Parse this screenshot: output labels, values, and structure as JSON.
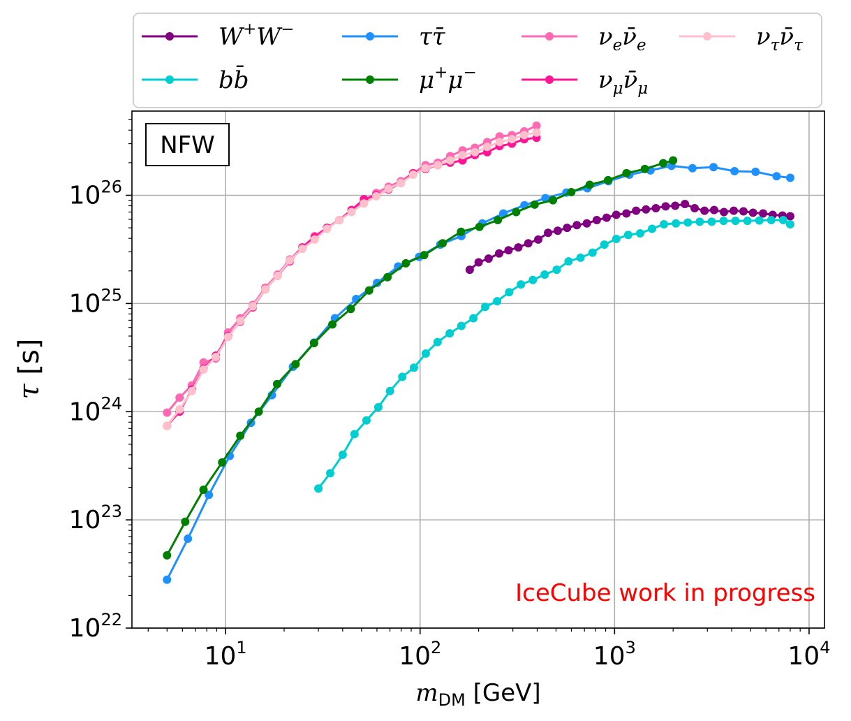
{
  "chart_data": {
    "type": "line",
    "title": "",
    "xlabel": "m_DM [GeV]",
    "ylabel": "τ [s]",
    "xscale": "log",
    "yscale": "log",
    "xlim": [
      3.3,
      12000
    ],
    "ylim": [
      1e+22,
      6e+26
    ],
    "grid": true,
    "legend_position": "top-outside",
    "x_ticks": [
      {
        "value": 10,
        "base": "10",
        "exp": "1"
      },
      {
        "value": 100,
        "base": "10",
        "exp": "2"
      },
      {
        "value": 1000,
        "base": "10",
        "exp": "3"
      },
      {
        "value": 10000,
        "base": "10",
        "exp": "4"
      }
    ],
    "y_ticks": [
      {
        "value": 1e+22,
        "base": "10",
        "exp": "22"
      },
      {
        "value": 1e+23,
        "base": "10",
        "exp": "23"
      },
      {
        "value": 1e+24,
        "base": "10",
        "exp": "24"
      },
      {
        "value": 1e+25,
        "base": "10",
        "exp": "25"
      },
      {
        "value": 1e+26,
        "base": "10",
        "exp": "26"
      }
    ],
    "annotations": [
      {
        "text": "NFW",
        "boxed": true,
        "position": "top-left"
      },
      {
        "text": "IceCube work in progress",
        "color": "#ff0000",
        "position": "bottom-right"
      }
    ],
    "series": [
      {
        "name": "W⁺W⁻",
        "legend": {
          "base": "W",
          "sup1": "+",
          "base2": "W",
          "sup2": "−"
        },
        "color": "#800080",
        "x": [
          180,
          200,
          225,
          255,
          285,
          320,
          360,
          405,
          455,
          510,
          570,
          640,
          720,
          810,
          910,
          1020,
          1150,
          1290,
          1450,
          1630,
          1830,
          2050,
          2300,
          2580,
          2900,
          3250,
          3650,
          4100,
          4600,
          5150,
          5800,
          6500,
          7300,
          8000
        ],
        "y": [
          2.05e+25,
          2.4e+25,
          2.6e+25,
          2.9e+25,
          3.1e+25,
          3.3e+25,
          3.6e+25,
          3.9e+25,
          4.5e+25,
          4.7e+25,
          5e+25,
          5.3e+25,
          5.5e+25,
          5.9e+25,
          6.2e+25,
          6.6e+25,
          6.8e+25,
          7.2e+25,
          7.4e+25,
          7.6e+25,
          7.9e+25,
          8e+25,
          8.3e+25,
          7.6e+25,
          7.2e+25,
          7.3e+25,
          7e+25,
          7.2e+25,
          7.1e+25,
          6.9e+25,
          6.8e+25,
          6.6e+25,
          6.5e+25,
          6.4e+25
        ]
      },
      {
        "name": "bb̄",
        "legend": {
          "base": "bb̄"
        },
        "color": "#00ced1",
        "x": [
          30,
          34.5,
          40,
          46,
          53,
          61,
          70,
          81,
          93,
          107,
          123,
          142,
          163,
          188,
          216,
          249,
          287,
          330,
          380,
          437,
          504,
          580,
          668,
          770,
          886,
          1020,
          1175,
          1353,
          1558,
          1794,
          2066,
          2380,
          2740,
          3156,
          3634,
          4185,
          4819,
          5550,
          6390,
          7360,
          8000
        ],
        "y": [
          1.95e+23,
          2.7e+23,
          4e+23,
          6.2e+23,
          8.3e+23,
          1.1e+24,
          1.55e+24,
          2.1e+24,
          2.55e+24,
          3.45e+24,
          4.4e+24,
          5.3e+24,
          6.2e+24,
          7.3e+24,
          9.3e+24,
          1.05e+25,
          1.27e+25,
          1.5e+25,
          1.65e+25,
          1.85e+25,
          2.05e+25,
          2.45e+25,
          2.65e+25,
          2.95e+25,
          3.5e+25,
          3.95e+25,
          4.3e+25,
          4.45e+25,
          4.9e+25,
          5.4e+25,
          5.5e+25,
          5.6e+25,
          5.7e+25,
          5.7e+25,
          5.8e+25,
          5.8e+25,
          5.8e+25,
          5.85e+25,
          5.9e+25,
          5.9e+25,
          5.4e+25
        ]
      },
      {
        "name": "ττ̄",
        "legend": {
          "base": "ττ̄"
        },
        "color": "#1e90ff",
        "x": [
          5,
          6.4,
          8.2,
          10.5,
          13.5,
          17.3,
          22.2,
          28.5,
          36.5,
          46.9,
          60.1,
          77.1,
          98.9,
          127,
          163,
          209,
          268,
          344,
          441,
          565,
          725,
          930,
          1192,
          1529,
          1961,
          2515,
          3226,
          4137,
          5306,
          6806,
          8000
        ],
        "y": [
          2.8e+22,
          6.7e+22,
          1.7e+23,
          3.9e+23,
          7.9e+23,
          1.42e+24,
          2.6e+24,
          4.35e+24,
          7.3e+24,
          1.1e+25,
          1.55e+25,
          2.2e+25,
          2.7e+25,
          3.5e+25,
          4.2e+25,
          5.5e+25,
          6.8e+25,
          8.1e+25,
          9.4e+25,
          1.06e+26,
          1.16e+26,
          1.35e+26,
          1.55e+26,
          1.7e+26,
          1.87e+26,
          1.78e+26,
          1.82e+26,
          1.67e+26,
          1.65e+26,
          1.5e+26,
          1.45e+26
        ]
      },
      {
        "name": "μ⁺μ⁻",
        "legend": {
          "base": "μ",
          "sup1": "+",
          "base2": "μ",
          "sup2": "−"
        },
        "color": "#008000",
        "x": [
          5,
          6.2,
          7.7,
          9.6,
          11.9,
          14.8,
          18.4,
          22.9,
          28.5,
          35.4,
          44.0,
          54.7,
          68.0,
          84.5,
          105,
          130.6,
          162.4,
          201.9,
          251,
          312,
          388,
          482,
          599,
          745,
          926,
          1151,
          1431,
          1779,
          2000
        ],
        "y": [
          4.7e+22,
          9.6e+22,
          1.9e+23,
          3.4e+23,
          6e+23,
          1e+24,
          1.8e+24,
          2.75e+24,
          4.3e+24,
          6.4e+24,
          8.9e+24,
          1.32e+25,
          1.75e+25,
          2.35e+25,
          2.8e+25,
          3.6e+25,
          4.6e+25,
          5.1e+25,
          5.9e+25,
          7e+25,
          8.2e+25,
          9e+25,
          1.07e+26,
          1.25e+26,
          1.38e+26,
          1.6e+26,
          1.75e+26,
          1.98e+26,
          2.1e+26
        ]
      },
      {
        "name": "ν_e ν̄_e",
        "legend": {
          "base": "ν",
          "sub1": "e",
          "base2": "ν̄",
          "sub2": "e"
        },
        "color": "#ff69b4",
        "x": [
          5,
          5.8,
          6.7,
          7.7,
          8.9,
          10.3,
          11.9,
          13.8,
          16.0,
          18.5,
          21.4,
          24.8,
          28.7,
          33.2,
          38.4,
          44.4,
          51.4,
          59.5,
          68.8,
          79.6,
          92.1,
          106.6,
          123.4,
          142.8,
          165.3,
          191.3,
          221.4,
          256.2,
          296.5,
          343.1,
          397
        ],
        "y": [
          9.8e+23,
          1.35e+24,
          1.75e+24,
          2.85e+24,
          3.1e+24,
          5.4e+24,
          7.3e+24,
          9.7e+24,
          1.4e+25,
          1.85e+25,
          2.55e+25,
          3.3e+25,
          4.2e+25,
          5e+25,
          5.9e+25,
          7.3e+25,
          8.8e+25,
          1.05e+26,
          1.2e+26,
          1.35e+26,
          1.6e+26,
          1.9e+26,
          2e+26,
          2.3e+26,
          2.6e+26,
          2.75e+26,
          3.1e+26,
          3.5e+26,
          3.6e+26,
          3.9e+26,
          4.4e+26
        ]
      },
      {
        "name": "ν_μ ν̄_μ",
        "legend": {
          "base": "ν",
          "sub1": "μ",
          "base2": "ν̄",
          "sub2": "μ"
        },
        "color": "#ff1493",
        "x": [
          5,
          5.8,
          6.7,
          7.7,
          8.9,
          10.3,
          11.9,
          13.8,
          16.0,
          18.5,
          21.4,
          24.8,
          28.7,
          33.2,
          38.4,
          44.4,
          51.4,
          59.5,
          68.8,
          79.6,
          92.1,
          106.6,
          123.4,
          142.8,
          165.3,
          191.3,
          221.4,
          256.2,
          296.5,
          343.1,
          397
        ],
        "y": [
          7.4e+23,
          1e+24,
          1.6e+24,
          2.5e+24,
          3.3e+24,
          5e+24,
          6.8e+24,
          9.2e+24,
          1.35e+25,
          1.8e+25,
          2.45e+25,
          3.3e+25,
          4.1e+25,
          5e+25,
          5.9e+25,
          7.3e+25,
          9.2e+25,
          1e+26,
          1.13e+26,
          1.3e+26,
          1.6e+26,
          1.75e+26,
          1.9e+26,
          2e+26,
          2.1e+26,
          2.35e+26,
          2.5e+26,
          2.85e+26,
          3e+26,
          3.3e+26,
          3.4e+26
        ]
      },
      {
        "name": "ν_τ ν̄_τ",
        "legend": {
          "base": "ν",
          "sub1": "τ",
          "base2": "ν̄",
          "sub2": "τ"
        },
        "color": "#ffc0cb",
        "x": [
          5,
          5.8,
          6.7,
          7.7,
          8.9,
          10.3,
          11.9,
          13.8,
          16.0,
          18.5,
          21.4,
          24.8,
          28.7,
          33.2,
          38.4,
          44.4,
          51.4,
          59.5,
          68.8,
          79.6,
          92.1,
          106.6,
          123.4,
          142.8,
          165.3,
          191.3,
          221.4,
          256.2,
          296.5,
          343.1,
          397
        ],
        "y": [
          7.4e+23,
          1.05e+24,
          1.55e+24,
          2.45e+24,
          3.2e+24,
          4.9e+24,
          6.9e+24,
          9.4e+24,
          1.35e+25,
          1.8e+25,
          2.5e+25,
          3.2e+25,
          3.9e+25,
          4.9e+25,
          5.9e+25,
          7e+25,
          8.4e+25,
          9.8e+25,
          1.15e+26,
          1.3e+26,
          1.55e+26,
          1.78e+26,
          1.9e+26,
          2.1e+26,
          2.35e+26,
          2.5e+26,
          2.8e+26,
          3.1e+26,
          3.3e+26,
          3.6e+26,
          3.8e+26
        ]
      }
    ]
  }
}
